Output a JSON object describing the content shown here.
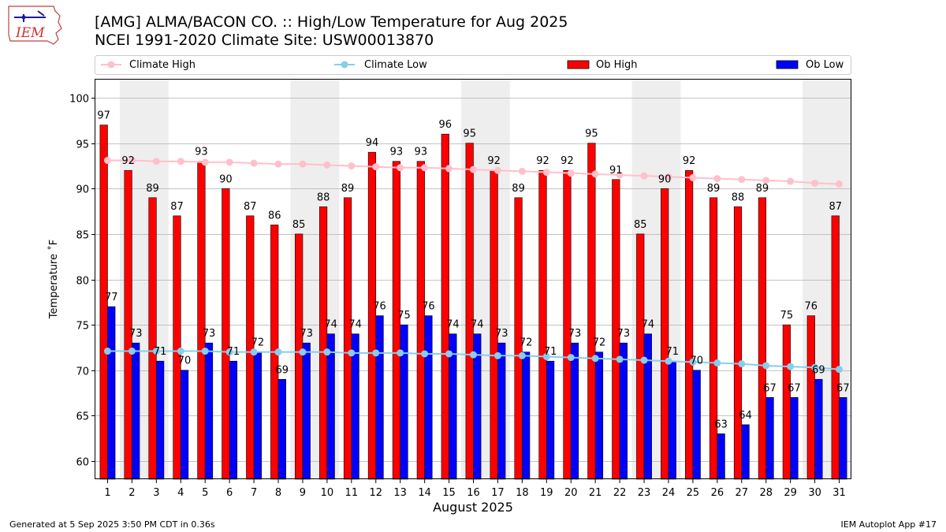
{
  "title_line1": "[AMG] ALMA/BACON CO. :: High/Low Temperature for Aug 2025",
  "title_line2": "NCEI 1991-2020 Climate Site: USW00013870",
  "footer_left": "Generated at 5 Sep 2025 3:50 PM CDT in 0.36s",
  "footer_right": "IEM Autoplot App #17",
  "logo_text": "IEM",
  "colors": {
    "ob_high": "#ff0000",
    "ob_low": "#0000ff",
    "climate_high": "#ffc0cb",
    "climate_low": "#87ceeb",
    "weekend_shade": "#eeeeee",
    "grid": "#b0b0b0"
  },
  "chart_data": {
    "type": "bar",
    "xlabel": "August 2025",
    "ylabel": "Temperature ˚F",
    "ylim": [
      58,
      102
    ],
    "yticks": [
      60,
      65,
      70,
      75,
      80,
      85,
      90,
      95,
      100
    ],
    "grid": true,
    "legend_position": "top",
    "categories": [
      "1",
      "2",
      "3",
      "4",
      "5",
      "6",
      "7",
      "8",
      "9",
      "10",
      "11",
      "12",
      "13",
      "14",
      "15",
      "16",
      "17",
      "18",
      "19",
      "20",
      "21",
      "22",
      "23",
      "24",
      "25",
      "26",
      "27",
      "28",
      "29",
      "30",
      "31"
    ],
    "shaded_days": [
      2,
      3,
      9,
      10,
      16,
      17,
      23,
      24,
      30,
      31
    ],
    "series": [
      {
        "name": "Climate High",
        "kind": "line",
        "values": [
          93.1,
          93.1,
          93.0,
          93.0,
          92.9,
          92.9,
          92.8,
          92.7,
          92.7,
          92.6,
          92.5,
          92.4,
          92.3,
          92.3,
          92.2,
          92.1,
          92.0,
          91.9,
          91.8,
          91.7,
          91.6,
          91.5,
          91.4,
          91.3,
          91.2,
          91.1,
          91.0,
          90.9,
          90.8,
          90.6,
          90.5
        ]
      },
      {
        "name": "Climate Low",
        "kind": "line",
        "values": [
          72.1,
          72.1,
          72.1,
          72.1,
          72.1,
          72.0,
          72.0,
          72.0,
          72.0,
          72.0,
          71.9,
          71.9,
          71.9,
          71.8,
          71.8,
          71.7,
          71.6,
          71.6,
          71.5,
          71.4,
          71.3,
          71.2,
          71.1,
          71.0,
          70.9,
          70.8,
          70.7,
          70.5,
          70.4,
          70.3,
          70.1
        ]
      },
      {
        "name": "Ob High",
        "kind": "bar",
        "values": [
          97,
          92,
          89,
          87,
          93,
          90,
          87,
          86,
          85,
          88,
          89,
          94,
          93,
          93,
          96,
          95,
          92,
          89,
          92,
          92,
          95,
          91,
          85,
          90,
          92,
          89,
          88,
          89,
          75,
          76,
          87
        ]
      },
      {
        "name": "Ob Low",
        "kind": "bar",
        "values": [
          77,
          73,
          71,
          70,
          73,
          71,
          72,
          69,
          73,
          74,
          74,
          76,
          75,
          76,
          74,
          74,
          73,
          72,
          71,
          73,
          72,
          73,
          74,
          71,
          70,
          63,
          64,
          67,
          67,
          69,
          67
        ]
      }
    ]
  }
}
